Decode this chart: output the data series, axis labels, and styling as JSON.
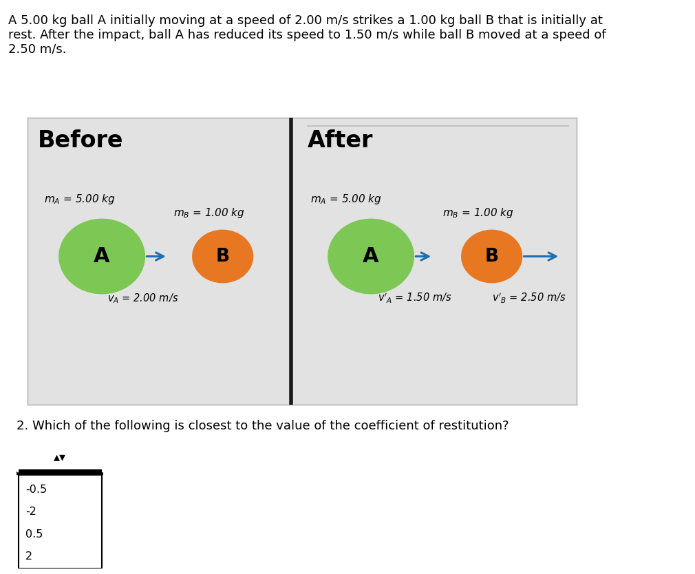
{
  "title_text": "A 5.00 kg ball A initially moving at a speed of 2.00 m/s strikes a 1.00 kg ball B that is initially at\nrest. After the impact, ball A has reduced its speed to 1.50 m/s while ball B moved at a speed of\n2.50 m/s.",
  "before_label": "Before",
  "after_label": "After",
  "ball_A_color": "#7dc855",
  "ball_B_color": "#e87722",
  "ball_A_label": "A",
  "ball_B_label": "B",
  "mA_label": "$m_A$ = 5.00 kg",
  "mB_label": "$m_B$ = 1.00 kg",
  "vA_before_label": "$v_A$ = 2.00 m/s",
  "vA_after_label": "$v'_A$ = 1.50 m/s",
  "vB_after_label": "$v'_B$ = 2.50 m/s",
  "arrow_color": "#1e6eb5",
  "bg_color": "#e2e2e2",
  "divider_color": "#1a1a1a",
  "question_text": "2. Which of the following is closest to the value of the coefficient of restitution?",
  "dropdown_options": [
    "-0.5",
    "-2",
    "0.5",
    "2"
  ],
  "fig_bg": "#ffffff",
  "box_border_color": "#aaaaaa",
  "top_line_color": "#bbbbbb"
}
